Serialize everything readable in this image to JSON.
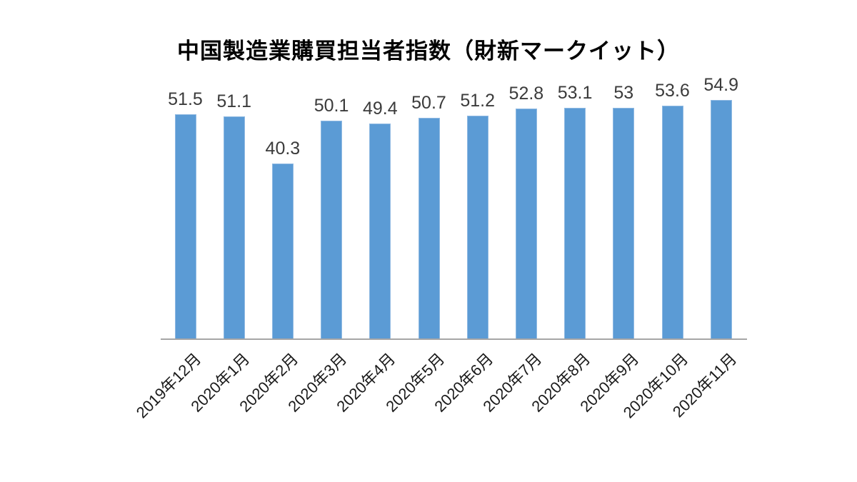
{
  "chart_data": {
    "type": "bar",
    "title": "中国製造業購買担当者指数（財新マークイット）",
    "categories": [
      "2019年12月",
      "2020年1月",
      "2020年2月",
      "2020年3月",
      "2020年4月",
      "2020年5月",
      "2020年6月",
      "2020年7月",
      "2020年8月",
      "2020年9月",
      "2020年10月",
      "2020年11月"
    ],
    "values": [
      51.5,
      51.1,
      40.3,
      50.1,
      49.4,
      50.7,
      51.2,
      52.8,
      53.1,
      53,
      53.6,
      54.9
    ],
    "value_labels": [
      "51.5",
      "51.1",
      "40.3",
      "50.1",
      "49.4",
      "50.7",
      "51.2",
      "52.8",
      "53.1",
      "53",
      "53.6",
      "54.9"
    ],
    "xlabel": "",
    "ylabel": "",
    "ylim": [
      0,
      55
    ],
    "grid": false,
    "legend": "none",
    "y_axis_visible": false,
    "x_label_rotation_deg": 45,
    "colors": {
      "bar": "#5B9BD5",
      "bar_border": "#8FB9E2",
      "axis_line": "#A6A6A6",
      "value_label": "#3b3b3b",
      "title": "#000000",
      "background": "#ffffff"
    }
  }
}
